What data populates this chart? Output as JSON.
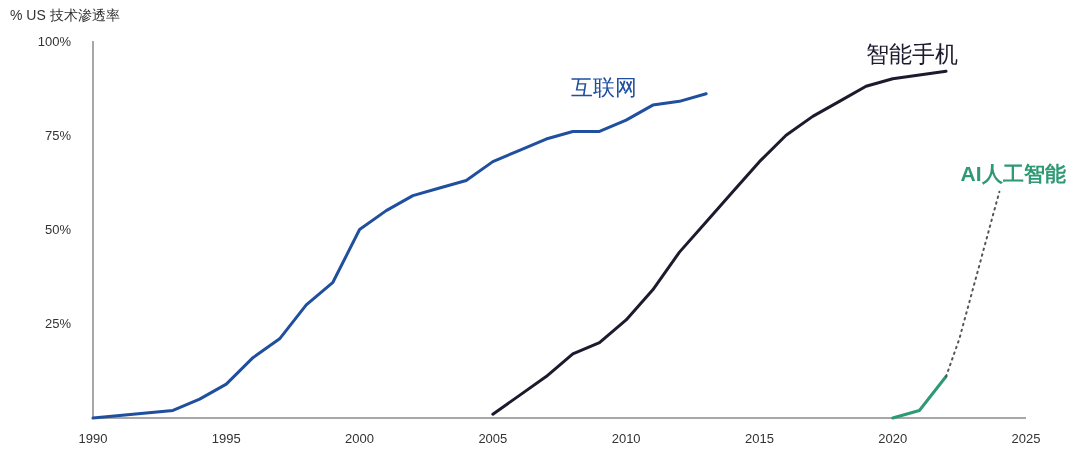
{
  "chart_data": {
    "type": "line",
    "ylabel": "% US 技术渗透率",
    "xlim": [
      1990,
      2025
    ],
    "xticks": [
      1990,
      1995,
      2000,
      2005,
      2010,
      2015,
      2020,
      2025
    ],
    "ylim": [
      0,
      100
    ],
    "yticks": [
      {
        "value": 25,
        "label": "25%"
      },
      {
        "value": 50,
        "label": "50%"
      },
      {
        "value": 75,
        "label": "75%"
      },
      {
        "value": 100,
        "label": "100%"
      }
    ],
    "legend": false,
    "series": [
      {
        "name": "互联网",
        "color": "#1f4f9e",
        "x": [
          1990,
          1993,
          1994,
          1995,
          1996,
          1997,
          1998,
          1999,
          2000,
          2001,
          2002,
          2003,
          2004,
          2005,
          2006,
          2007,
          2008,
          2009,
          2010,
          2011,
          2012,
          2013
        ],
        "values": [
          0,
          2,
          5,
          9,
          16,
          21,
          30,
          36,
          50,
          55,
          59,
          61,
          63,
          68,
          71,
          74,
          76,
          76,
          79,
          83,
          84,
          86
        ]
      },
      {
        "name": "智能手机",
        "color": "#1c1b2e",
        "x": [
          2005,
          2006,
          2007,
          2008,
          2009,
          2010,
          2011,
          2012,
          2013,
          2014,
          2015,
          2016,
          2017,
          2018,
          2019,
          2020,
          2021,
          2022
        ],
        "values": [
          1,
          6,
          11,
          17,
          20,
          26,
          34,
          44,
          52,
          60,
          68,
          75,
          80,
          84,
          88,
          90,
          91,
          92
        ]
      },
      {
        "name": "AI人工智能",
        "color": "#2e9a74",
        "x": [
          2020,
          2021,
          2022
        ],
        "values": [
          0,
          2,
          11
        ]
      },
      {
        "color": "#555555",
        "line_style": "dotted",
        "x": [
          2022,
          2022.5,
          2023,
          2023.5,
          2024
        ],
        "values": [
          11,
          21,
          34,
          47,
          60
        ]
      }
    ]
  }
}
